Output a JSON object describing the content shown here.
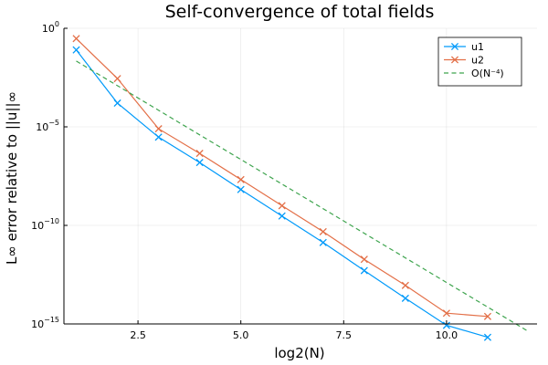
{
  "chart_data": {
    "type": "line",
    "title": "Self-convergence of total fields",
    "xlabel": "log2(N)",
    "ylabel": "L∞ error relative to ||u||∞",
    "x_scale": "linear",
    "y_scale": "log",
    "xlim": [
      0.7,
      12.2
    ],
    "ylim": [
      1e-15,
      1
    ],
    "x_ticks": [
      2.5,
      5.0,
      7.5,
      10.0
    ],
    "x_tick_labels": [
      "2.5",
      "5.0",
      "7.5",
      "10.0"
    ],
    "y_ticks": [
      1,
      1e-05,
      1e-10,
      1e-15
    ],
    "y_tick_labels": [
      {
        "base": "10",
        "exp": "0"
      },
      {
        "base": "10",
        "exp": "−5"
      },
      {
        "base": "10",
        "exp": "−10"
      },
      {
        "base": "10",
        "exp": "−15"
      }
    ],
    "grid": true,
    "legend_position": "top-right",
    "series": [
      {
        "name": "u1",
        "color": "#009AFA",
        "marker": "x",
        "x": [
          1,
          2,
          3,
          4,
          5,
          6,
          7,
          8,
          9,
          10,
          11
        ],
        "y": [
          0.08,
          0.00016,
          3e-06,
          1.55e-07,
          6.6e-09,
          3e-10,
          1.35e-11,
          5.1e-13,
          2e-14,
          8.5e-16,
          2.1e-16
        ]
      },
      {
        "name": "u2",
        "color": "#E36F47",
        "marker": "x",
        "x": [
          1,
          2,
          3,
          4,
          5,
          6,
          7,
          8,
          9,
          10,
          11
        ],
        "y": [
          0.3,
          0.0028,
          8e-06,
          4.5e-07,
          2.1e-08,
          1e-09,
          4.8e-11,
          1.9e-12,
          9e-14,
          3.5e-15,
          2.4e-15
        ]
      },
      {
        "name": "O(N⁻⁴)",
        "color": "#3EA44E",
        "dash": "dashed",
        "x": [
          1,
          12
        ],
        "y": [
          0.0217,
          4.03e-16
        ]
      }
    ]
  }
}
